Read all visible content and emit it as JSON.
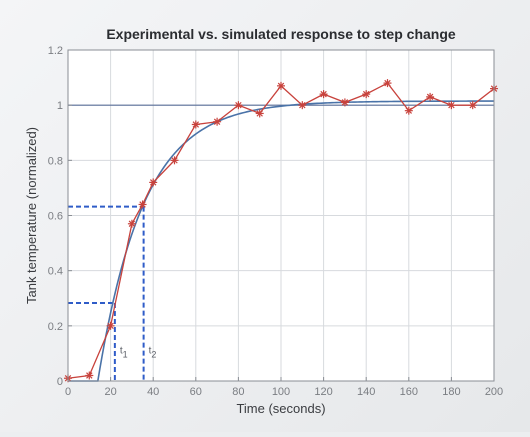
{
  "chart_data": {
    "type": "line",
    "title": "Experimental vs. simulated response to step change",
    "xlabel": "Time (seconds)",
    "ylabel": "Tank temperature (normalized)",
    "xlim": [
      0,
      200
    ],
    "ylim": [
      0,
      1.2
    ],
    "xticks": [
      0,
      20,
      40,
      60,
      80,
      100,
      120,
      140,
      160,
      180,
      200
    ],
    "yticks": [
      0,
      0.2,
      0.4,
      0.6,
      0.8,
      1,
      1.2
    ],
    "xtick_labels": [
      "0",
      "20",
      "40",
      "60",
      "80",
      "100",
      "120",
      "140",
      "160",
      "180",
      "200"
    ],
    "ytick_labels": [
      "0",
      "0.2",
      "0.4",
      "0.6",
      "0.8",
      "1",
      "1.2"
    ],
    "grid": true,
    "reference_line_y": 1,
    "series": [
      {
        "kind": "experimental",
        "marker": "star",
        "color": "#c8423c",
        "x": [
          0,
          10,
          20,
          30,
          35,
          40,
          50,
          60,
          70,
          80,
          90,
          100,
          110,
          120,
          130,
          140,
          150,
          160,
          170,
          180,
          190,
          200
        ],
        "y": [
          0.01,
          0.02,
          0.2,
          0.57,
          0.64,
          0.72,
          0.8,
          0.93,
          0.94,
          1.0,
          0.97,
          1.07,
          1.0,
          1.04,
          1.01,
          1.04,
          1.08,
          0.98,
          1.03,
          1.0,
          1.0,
          1.06
        ]
      },
      {
        "kind": "simulated",
        "color": "#4a73a8",
        "model": {
          "type": "first_order_plus_dead_time",
          "delay": 14,
          "tau": 21.5,
          "gain": 1.015
        }
      }
    ],
    "annotations": [
      {
        "label": "t",
        "subscript": "1",
        "x": 22,
        "y": 0.283
      },
      {
        "label": "t",
        "subscript": "2",
        "x": 35.5,
        "y": 0.632
      }
    ]
  },
  "style": {
    "plot_background": "#ffffff",
    "grid_color": "#d7dade",
    "axis_color": "#8a8e94",
    "reference_line_color": "#5a6f99",
    "dash_color": "#2f5cc8"
  }
}
